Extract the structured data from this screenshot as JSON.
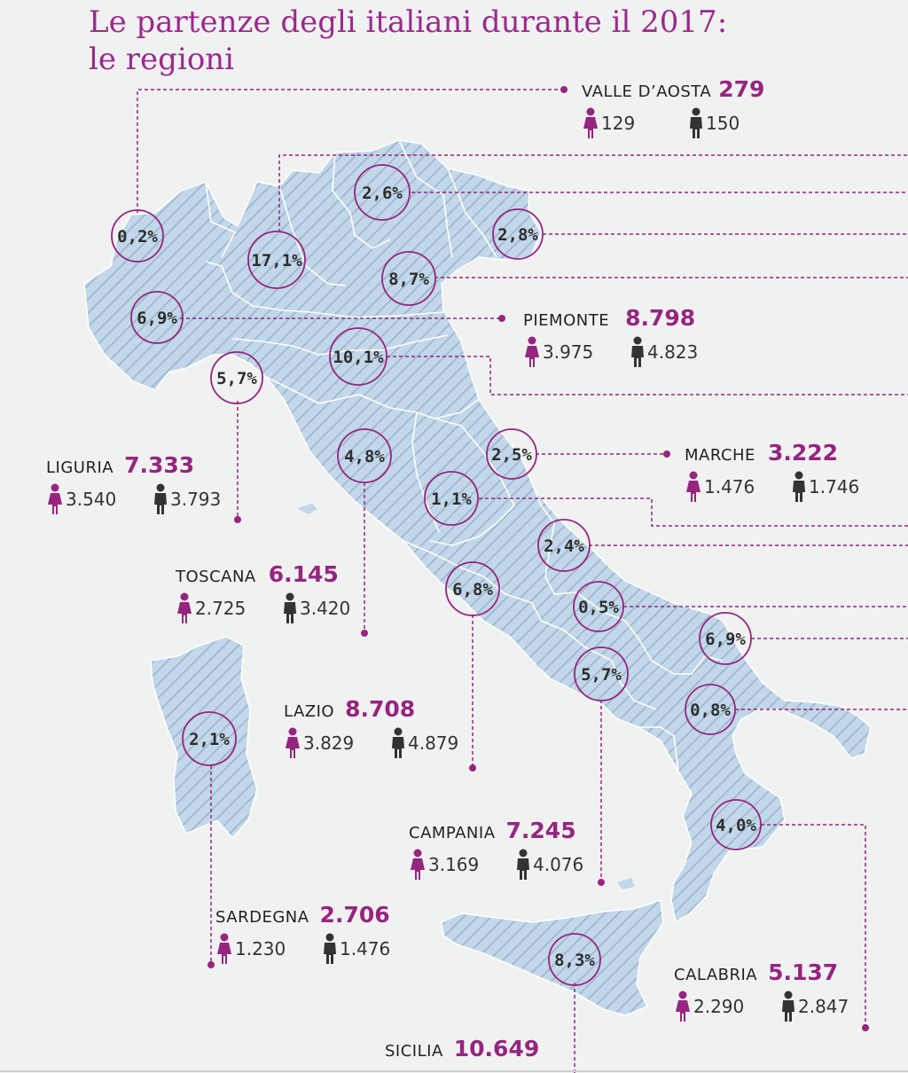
{
  "title_line1": "Le partenze degli italiani durante il 2017:",
  "title_line2": "le regioni",
  "colors": {
    "accent": "#96257f",
    "map_fill": "#c2d7e9",
    "map_hatch": "#9cb4cb",
    "male": "#333333"
  },
  "icons": {
    "female": "female-figure-icon",
    "male": "male-figure-icon"
  },
  "percentages": {
    "valle_daosta": "0,2%",
    "lombardia": "17,1%",
    "trentino": "2,6%",
    "friuli": "2,8%",
    "veneto": "8,7%",
    "piemonte": "6,9%",
    "liguria": "5,7%",
    "emilia": "10,1%",
    "toscana": "4,8%",
    "marche": "2,5%",
    "umbria": "1,1%",
    "abruzzo": "2,4%",
    "lazio": "6,8%",
    "molise": "0,5%",
    "puglia": "6,9%",
    "campania": "5,7%",
    "basilicata": "0,8%",
    "sardegna": "2,1%",
    "calabria": "4,0%",
    "sicilia": "8,3%"
  },
  "regions": {
    "valle_daosta": {
      "name": "VALLE D’AOSTA",
      "total": "279",
      "female": "129",
      "male": "150"
    },
    "piemonte": {
      "name": "PIEMONTE",
      "total": "8.798",
      "female": "3.975",
      "male": "4.823"
    },
    "marche": {
      "name": "MARCHE",
      "total": "3.222",
      "female": "1.476",
      "male": "1.746"
    },
    "liguria": {
      "name": "LIGURIA",
      "total": "7.333",
      "female": "3.540",
      "male": "3.793"
    },
    "toscana": {
      "name": "TOSCANA",
      "total": "6.145",
      "female": "2.725",
      "male": "3.420"
    },
    "lazio": {
      "name": "LAZIO",
      "total": "8.708",
      "female": "3.829",
      "male": "4.879"
    },
    "campania": {
      "name": "CAMPANIA",
      "total": "7.245",
      "female": "3.169",
      "male": "4.076"
    },
    "sardegna": {
      "name": "SARDEGNA",
      "total": "2.706",
      "female": "1.230",
      "male": "1.476"
    },
    "calabria": {
      "name": "CALABRIA",
      "total": "5.137",
      "female": "2.290",
      "male": "2.847"
    },
    "sicilia": {
      "name": "SICILIA",
      "total": "10.649"
    }
  }
}
